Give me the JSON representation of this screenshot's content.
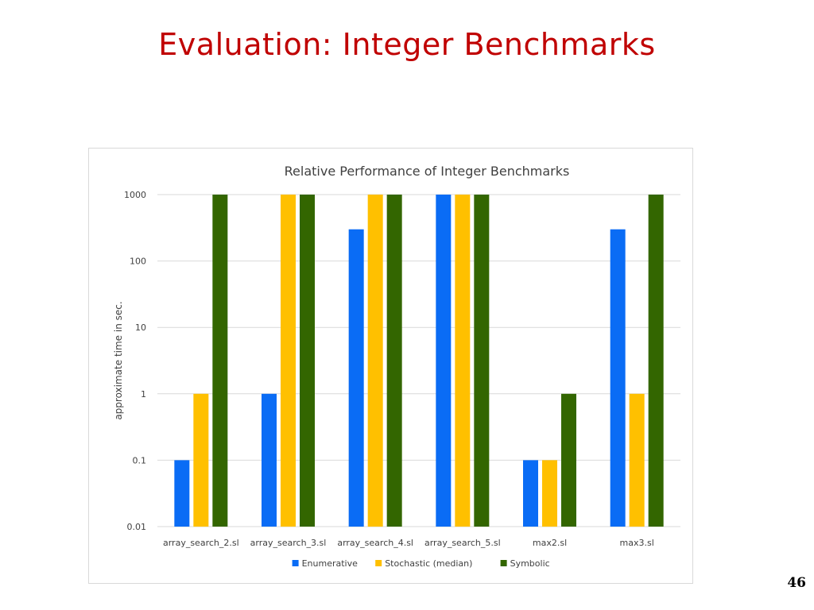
{
  "slide": {
    "title": "Evaluation: Integer Benchmarks",
    "page_number": "46"
  },
  "chart_data": {
    "type": "bar",
    "title": "Relative Performance of  Integer Benchmarks",
    "xlabel": "",
    "ylabel": "approximate time in sec.",
    "yscale": "log",
    "ylim": [
      0.01,
      1000
    ],
    "yticks": [
      "0.01",
      "0.1",
      "1",
      "10",
      "100",
      "1000"
    ],
    "ytick_values": [
      0.01,
      0.1,
      1,
      10,
      100,
      1000
    ],
    "grid": true,
    "legend_position": "bottom",
    "categories": [
      "array_search_2.sl",
      "array_search_3.sl",
      "array_search_4.sl",
      "array_search_5.sl",
      "max2.sl",
      "max3.sl"
    ],
    "series": [
      {
        "name": "Enumerative",
        "color": "#0a6cf5",
        "values": [
          0.1,
          1,
          300,
          1000,
          0.1,
          300
        ]
      },
      {
        "name": "Stochastic (median)",
        "color": "#ffc000",
        "values": [
          1,
          1000,
          1000,
          1000,
          0.1,
          1
        ]
      },
      {
        "name": "Symbolic",
        "color": "#336600",
        "values": [
          1000,
          1000,
          1000,
          1000,
          1,
          1000
        ]
      }
    ]
  }
}
